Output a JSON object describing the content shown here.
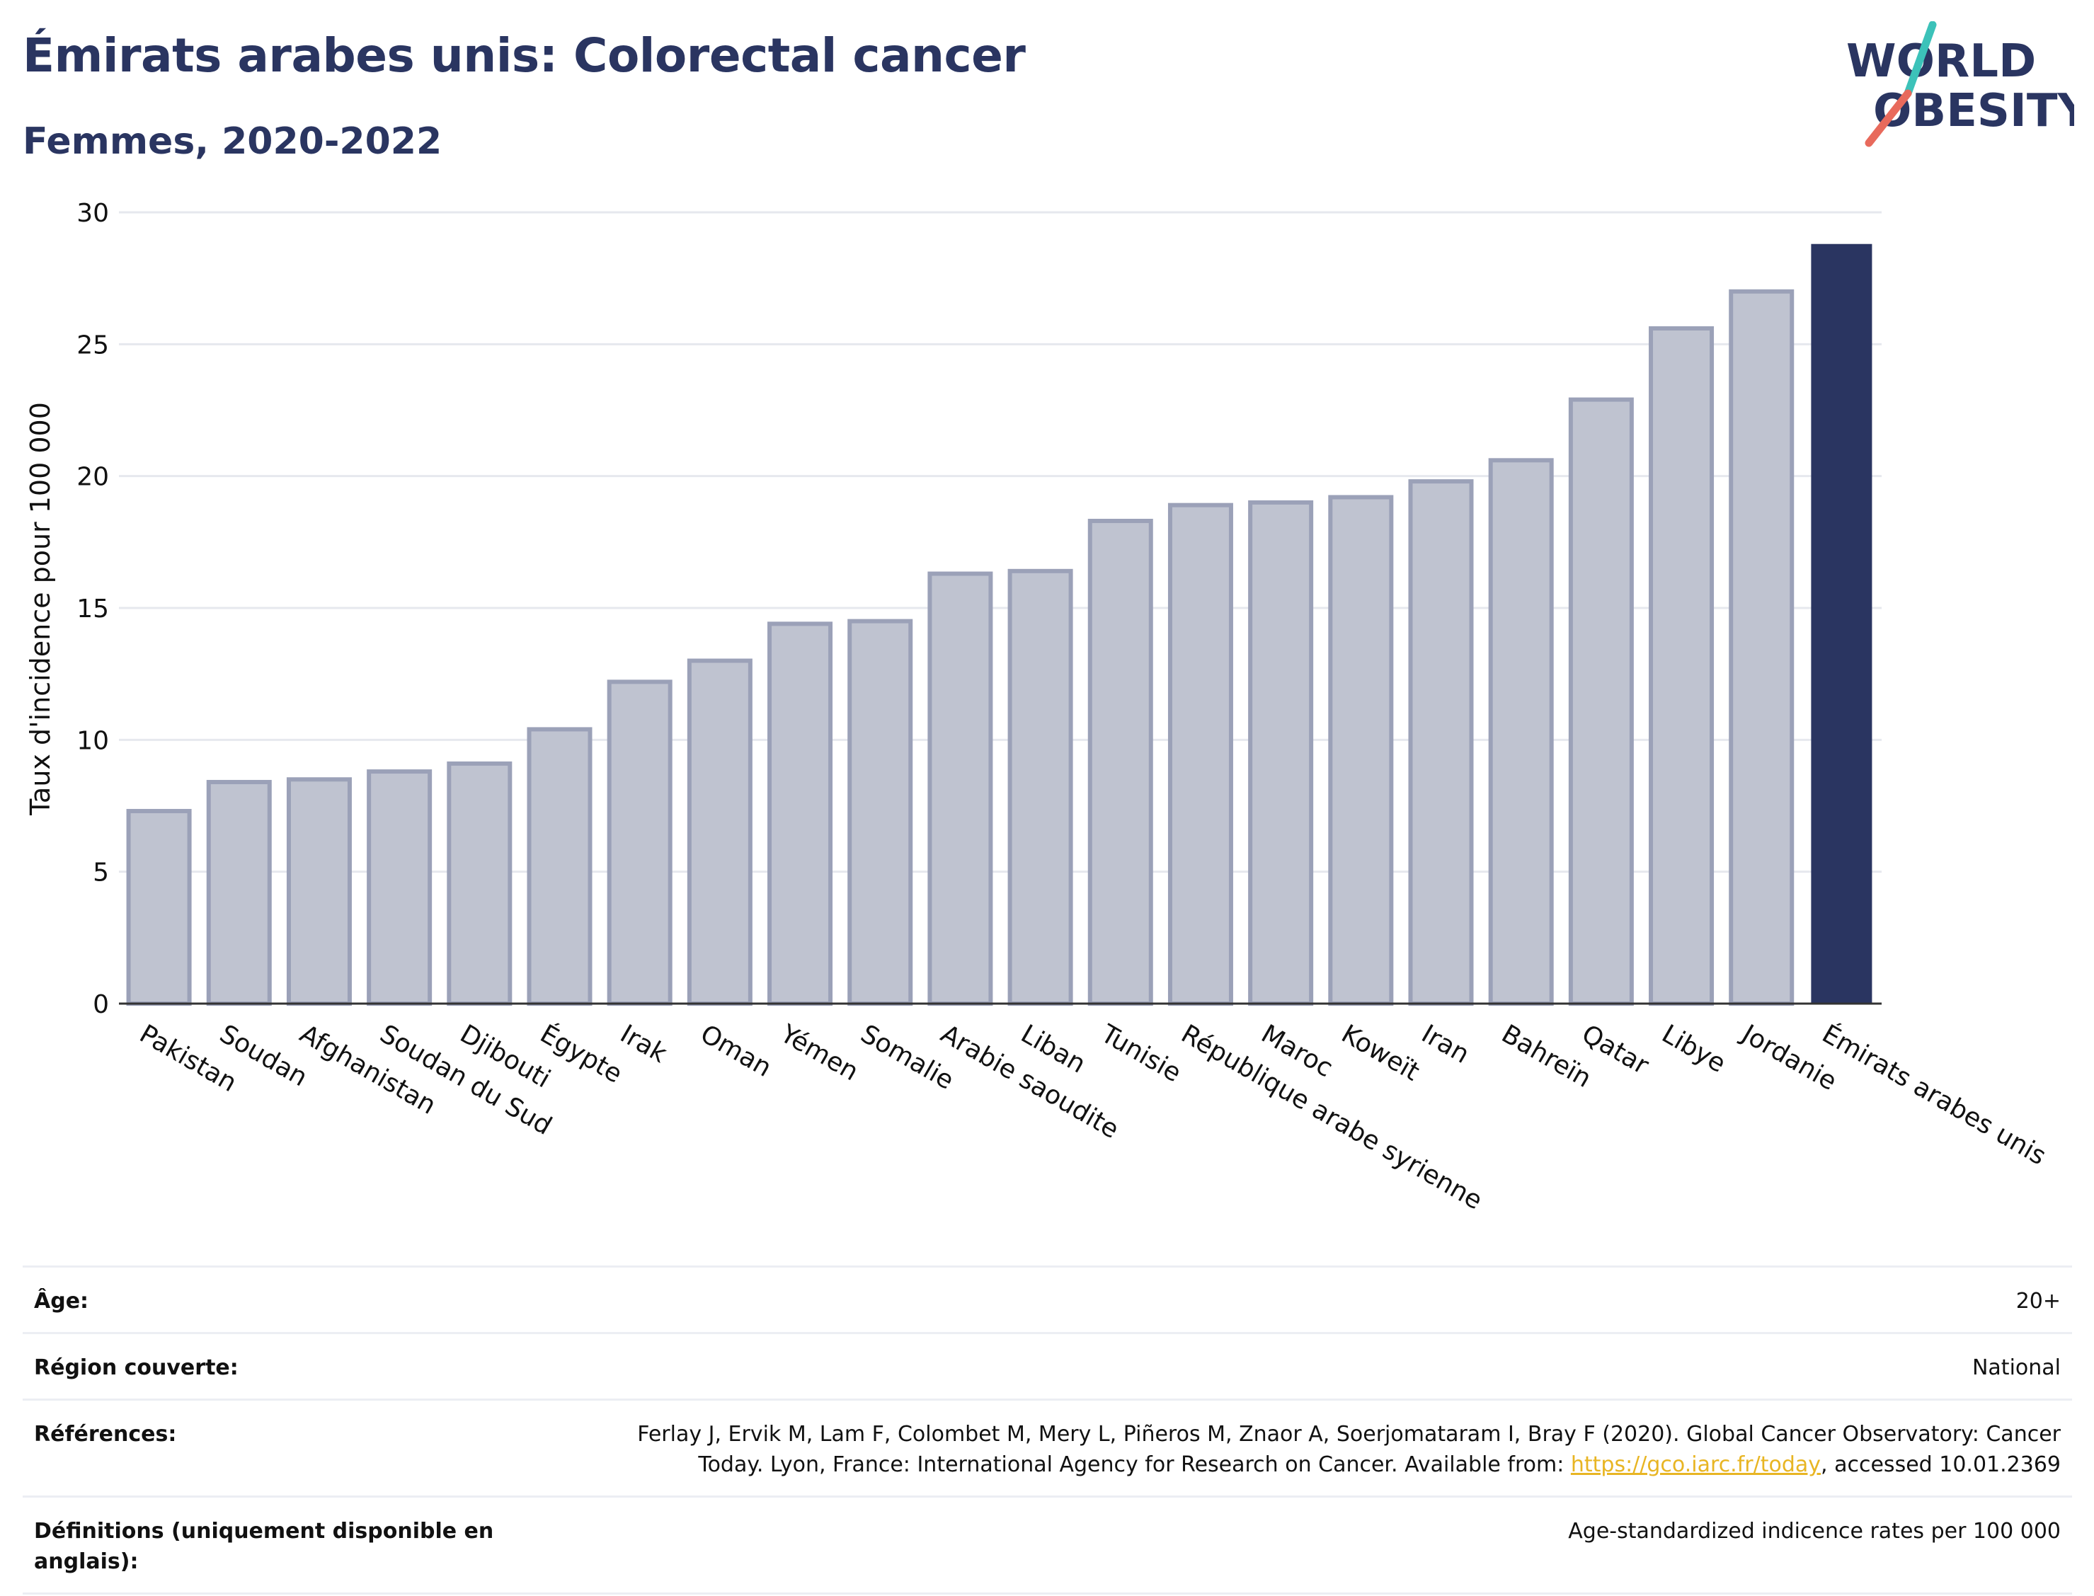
{
  "header": {
    "title": "Émirats arabes unis: Colorectal cancer",
    "subtitle": "Femmes, 2020-2022"
  },
  "logo": {
    "line1": "WORLD",
    "line2": "OBESITY",
    "stripe_colors": [
      "#3cc2b9",
      "#e86a5c"
    ]
  },
  "colors": {
    "bar_default": "#bfc3d0",
    "bar_border": "#9ba1b8",
    "bar_highlight": "#2a3561",
    "text_dark": "#2a3561",
    "link": "#e8b523"
  },
  "chart_data": {
    "type": "bar",
    "title": "Émirats arabes unis: Colorectal cancer",
    "subtitle": "Femmes, 2020-2022",
    "ylabel": "Taux d'incidence pour 100 000",
    "xlabel": "",
    "ylim": [
      0,
      30
    ],
    "yticks": [
      0,
      5,
      10,
      15,
      20,
      25,
      30
    ],
    "grid": true,
    "highlight": "Émirats arabes unis",
    "categories": [
      "Pakistan",
      "Soudan",
      "Afghanistan",
      "Soudan du Sud",
      "Djibouti",
      "Égypte",
      "Irak",
      "Oman",
      "Yémen",
      "Somalie",
      "Arabie saoudite",
      "Liban",
      "Tunisie",
      "République arabe syrienne",
      "Maroc",
      "Koweït",
      "Iran",
      "Bahreïn",
      "Qatar",
      "Libye",
      "Jordanie",
      "Émirats arabes unis"
    ],
    "values": [
      7.3,
      8.4,
      8.5,
      8.8,
      9.1,
      10.4,
      12.2,
      13.0,
      14.4,
      14.5,
      16.3,
      16.4,
      18.3,
      18.9,
      19.0,
      19.2,
      19.8,
      20.6,
      22.9,
      25.6,
      27.0,
      28.8
    ]
  },
  "metadata": {
    "rows": [
      {
        "key": "Âge:",
        "value": "20+"
      },
      {
        "key": "Région couverte:",
        "value": "National"
      },
      {
        "key": "Références:",
        "value_line1": "Ferlay J, Ervik M, Lam F, Colombet M, Mery L, Piñeros M, Znaor A, Soerjomataram I, Bray F (2020). Global Cancer Observatory: Cancer",
        "value_line2_pre": "Today. Lyon, France: International Agency for Research on Cancer. Available from: ",
        "link_text": "https://gco.iarc.fr/today",
        "value_line2_post": ", accessed 10.01.2369"
      },
      {
        "key": "Définitions (uniquement disponible en anglais):",
        "value": "Age-standardized indicence rates per 100 000"
      }
    ]
  }
}
